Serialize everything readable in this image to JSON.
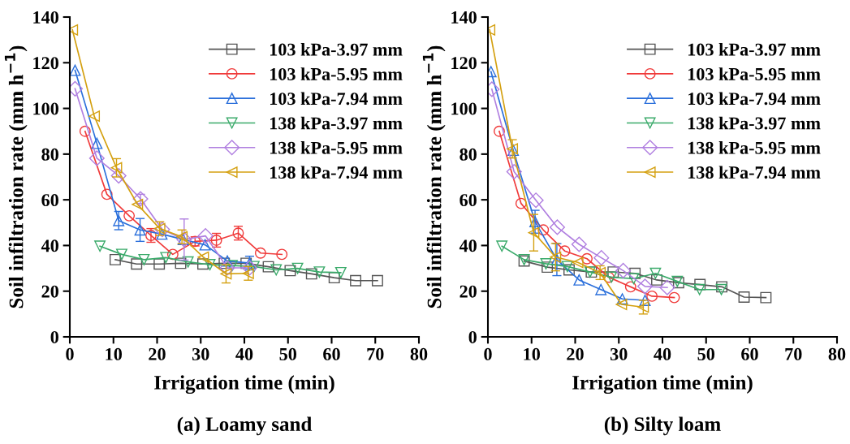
{
  "chart_data": [
    {
      "type": "line",
      "title": "(a) Loamy sand",
      "xlabel": "Irrigation time (min)",
      "ylabel": "Soil infiltration rate (mm h$^{−1}$)",
      "xlim": [
        0,
        80
      ],
      "xticks": [
        0,
        10,
        20,
        30,
        40,
        50,
        60,
        70,
        80
      ],
      "ylim": [
        0,
        140
      ],
      "yticks": [
        0,
        20,
        40,
        60,
        80,
        100,
        120,
        140
      ],
      "grid": false,
      "legend": "top right",
      "line_style": "solid",
      "series": [
        {
          "name": "103 kPa-3.97 mm",
          "color": "#555555",
          "marker": "square",
          "x": [
            10.4,
            15.3,
            20.5,
            25.4,
            30.5,
            35.4,
            40.4,
            45.5,
            50.5,
            55.4,
            60.6,
            65.5,
            70.5
          ],
          "values": [
            33.8,
            31.9,
            31.9,
            32.2,
            31.9,
            32.2,
            32.2,
            30.7,
            29.0,
            27.6,
            25.9,
            24.6,
            24.6
          ]
        },
        {
          "name": "103 kPa-5.95 mm",
          "color": "#f03a3a",
          "marker": "circle",
          "x": [
            3.5,
            8.5,
            13.6,
            18.6,
            23.6,
            28.7,
            33.6,
            38.6,
            43.7,
            48.6
          ],
          "values": [
            90.0,
            62.4,
            53.0,
            44.4,
            36.1,
            41.8,
            42.3,
            45.4,
            36.7,
            36.1
          ],
          "errors": [
            null,
            null,
            null,
            3,
            null,
            2,
            3,
            3,
            null,
            null
          ]
        },
        {
          "name": "103 kPa-7.94 mm",
          "color": "#2a6fdb",
          "marker": "triangle",
          "x": [
            1.2,
            6.2,
            11.2,
            16.1,
            21.1,
            26.0,
            31.0,
            36.1,
            41.2
          ],
          "values": [
            116.7,
            84.7,
            50.9,
            46.8,
            45.0,
            42.6,
            40.3,
            33.2,
            32.3
          ],
          "errors": [
            null,
            null,
            4,
            5,
            null,
            null,
            null,
            null,
            3
          ]
        },
        {
          "name": "138 kPa-3.97 mm",
          "color": "#3aaa6a",
          "marker": "triangle_down",
          "x": [
            6.9,
            11.9,
            17.0,
            22.0,
            27.1,
            32.1,
            37.2,
            42.2,
            47.3,
            52.2,
            57.2,
            62.1
          ],
          "values": [
            39.7,
            36.1,
            33.8,
            34.7,
            32.8,
            31.6,
            31.2,
            30.8,
            29.3,
            30.0,
            28.4,
            28.1
          ]
        },
        {
          "name": "138 kPa-5.95 mm",
          "color": "#b07fe0",
          "marker": "diamond",
          "x": [
            1.2,
            6.2,
            11.2,
            16.2,
            21.2,
            26.2,
            31.1,
            36.1,
            41.2
          ],
          "values": [
            108.6,
            78.2,
            70.5,
            60.4,
            47.0,
            42.6,
            44.2,
            30.2,
            30.2
          ],
          "errors": [
            null,
            null,
            null,
            2,
            null,
            9,
            null,
            null,
            null
          ]
        },
        {
          "name": "138 kPa-7.94 mm",
          "color": "#d4a010",
          "marker": "triangle_left",
          "x": [
            0.6,
            5.6,
            10.7,
            15.5,
            20.6,
            25.7,
            30.6,
            35.8,
            40.9
          ],
          "values": [
            134.4,
            96.6,
            74.0,
            58.0,
            47.4,
            43.8,
            34.9,
            27.6,
            27.8
          ],
          "errors": [
            null,
            null,
            4,
            null,
            3,
            3,
            null,
            4,
            3
          ]
        }
      ]
    },
    {
      "type": "line",
      "title": "(b) Silty loam",
      "xlabel": "Irrigation time (min)",
      "ylabel": "Soil infiltration rate (mm h$^{−1}$)",
      "xlim": [
        0,
        80
      ],
      "xticks": [
        0,
        10,
        20,
        30,
        40,
        50,
        60,
        70,
        80
      ],
      "ylim": [
        0,
        140
      ],
      "yticks": [
        0,
        20,
        40,
        60,
        80,
        100,
        120,
        140
      ],
      "grid": false,
      "legend": "top right",
      "line_style": "solid",
      "series": [
        {
          "name": "103 kPa-3.97 mm",
          "color": "#555555",
          "marker": "square",
          "x": [
            8.3,
            13.6,
            18.6,
            23.7,
            28.7,
            33.7,
            38.7,
            43.7,
            48.6,
            53.6,
            58.7,
            63.7
          ],
          "values": [
            33.2,
            30.5,
            29.3,
            28.4,
            28.4,
            27.8,
            24.9,
            23.7,
            22.9,
            21.9,
            17.4,
            17.2
          ]
        },
        {
          "name": "103 kPa-5.95 mm",
          "color": "#f03a3a",
          "marker": "circle",
          "x": [
            2.6,
            7.6,
            12.7,
            17.6,
            22.7,
            27.7,
            32.7,
            37.6,
            42.7
          ],
          "values": [
            90.0,
            58.4,
            46.8,
            37.6,
            34.2,
            26.1,
            21.9,
            17.8,
            17.2
          ]
        },
        {
          "name": "103 kPa-7.94 mm",
          "color": "#2a6fdb",
          "marker": "triangle",
          "x": [
            0.7,
            5.8,
            10.8,
            15.8,
            20.9,
            25.9,
            30.8,
            36.0
          ],
          "values": [
            116.1,
            81.7,
            50.4,
            33.8,
            24.9,
            20.7,
            16.6,
            16.0
          ],
          "errors": [
            null,
            null,
            5,
            7,
            null,
            null,
            null,
            null
          ]
        },
        {
          "name": "138 kPa-3.97 mm",
          "color": "#3aaa6a",
          "marker": "triangle_down",
          "x": [
            3.2,
            8.3,
            13.3,
            18.2,
            23.4,
            28.3,
            33.4,
            38.4,
            43.4,
            48.5,
            53.5
          ],
          "values": [
            39.7,
            33.8,
            32.0,
            30.8,
            28.4,
            26.1,
            25.5,
            27.8,
            24.3,
            20.7,
            20.7
          ]
        },
        {
          "name": "138 kPa-5.95 mm",
          "color": "#b07fe0",
          "marker": "diamond",
          "x": [
            0.9,
            6.0,
            11.0,
            15.9,
            20.9,
            26.0,
            31.0,
            36.0,
            41.1
          ],
          "values": [
            108.4,
            72.3,
            59.8,
            48.0,
            40.5,
            34.6,
            29.0,
            22.1,
            21.6
          ]
        },
        {
          "name": "138 kPa-7.94 mm",
          "color": "#d4a010",
          "marker": "triangle_left",
          "x": [
            0.4,
            5.6,
            10.5,
            15.5,
            20.6,
            25.7,
            30.6,
            35.6
          ],
          "values": [
            134.4,
            82.3,
            45.6,
            34.9,
            32.6,
            28.1,
            14.2,
            13.0
          ],
          "errors": [
            null,
            4,
            8,
            6,
            null,
            3,
            null,
            3
          ]
        }
      ]
    }
  ]
}
